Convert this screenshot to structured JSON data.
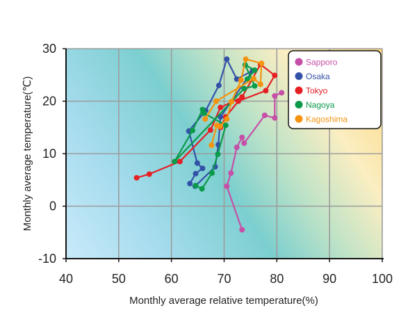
{
  "chart_data": {
    "type": "line",
    "xlabel": "Monthly average relative temperature(%)",
    "ylabel": "Monthly average temperature(℃)",
    "xlim": [
      40,
      100
    ],
    "ylim": [
      -10,
      30
    ],
    "x_ticks": [
      40,
      50,
      60,
      70,
      80,
      90,
      100
    ],
    "y_ticks": [
      -10,
      0,
      10,
      20,
      30
    ],
    "x_tick_labels": [
      "40",
      "50",
      "60",
      "70",
      "80",
      "90",
      "100"
    ],
    "y_tick_labels": [
      "-10",
      "0",
      "10",
      "20",
      "30"
    ],
    "grid": true,
    "legend_position": "top-right",
    "background": "diagonal gradient from light blue (bottom-left) through teal to yellow/orange (top-right)",
    "series": [
      {
        "name": "Sapporo",
        "color": "#c64fa8",
        "points": [
          [
            73.4,
            -4.5
          ],
          [
            70.5,
            3.8
          ],
          [
            71.3,
            6.3
          ],
          [
            72.4,
            11.2
          ],
          [
            73.4,
            13.1
          ],
          [
            73.8,
            12.0
          ],
          [
            77.7,
            17.3
          ],
          [
            79.6,
            16.8
          ],
          [
            79.6,
            21.0
          ],
          [
            80.9,
            21.6
          ]
        ]
      },
      {
        "name": "Osaka",
        "color": "#3451a8",
        "points": [
          [
            63.5,
            4.3
          ],
          [
            64.6,
            6.2
          ],
          [
            65.9,
            7.2
          ],
          [
            64.9,
            8.2
          ],
          [
            63.3,
            14.3
          ],
          [
            66.5,
            18.2
          ],
          [
            69.0,
            23.0
          ],
          [
            70.5,
            28.0
          ],
          [
            72.4,
            24.2
          ],
          [
            75.4,
            25.8
          ],
          [
            69.3,
            17.0
          ],
          [
            68.9,
            11.7
          ],
          [
            68.3,
            7.5
          ],
          [
            64.5,
            3.8
          ]
        ]
      },
      {
        "name": "Tokyo",
        "color": "#e51f24",
        "points": [
          [
            53.4,
            5.4
          ],
          [
            55.8,
            6.1
          ],
          [
            61.6,
            8.5
          ],
          [
            67.4,
            14.5
          ],
          [
            69.3,
            18.8
          ],
          [
            73.4,
            20.8
          ],
          [
            76.9,
            27.0
          ],
          [
            79.6,
            24.9
          ],
          [
            77.9,
            22.0
          ],
          [
            72.7,
            20.0
          ],
          [
            70.3,
            17.0
          ],
          [
            69.3,
            15.0
          ]
        ]
      },
      {
        "name": "Nagoya",
        "color": "#0b9a4a",
        "points": [
          [
            64.6,
            3.9
          ],
          [
            65.8,
            3.3
          ],
          [
            67.7,
            6.3
          ],
          [
            68.8,
            9.9
          ],
          [
            70.3,
            15.4
          ],
          [
            66.2,
            17.7
          ],
          [
            65.9,
            18.4
          ],
          [
            64.0,
            14.4
          ],
          [
            60.6,
            8.5
          ],
          [
            73.8,
            22.4
          ],
          [
            75.8,
            22.9
          ],
          [
            74.0,
            26.9
          ],
          [
            75.8,
            25.9
          ],
          [
            74.4,
            24.2
          ]
        ]
      },
      {
        "name": "Kagoshima",
        "color": "#f5930e",
        "points": [
          [
            67.6,
            11.6
          ],
          [
            68.6,
            15.4
          ],
          [
            69.2,
            15.2
          ],
          [
            70.5,
            16.6
          ],
          [
            71.4,
            19.9
          ],
          [
            73.2,
            24.0
          ],
          [
            74.1,
            28.0
          ],
          [
            77.1,
            27.2
          ],
          [
            76.9,
            23.2
          ],
          [
            75.6,
            24.3
          ],
          [
            68.5,
            20.0
          ],
          [
            66.4,
            16.6
          ]
        ]
      }
    ]
  }
}
